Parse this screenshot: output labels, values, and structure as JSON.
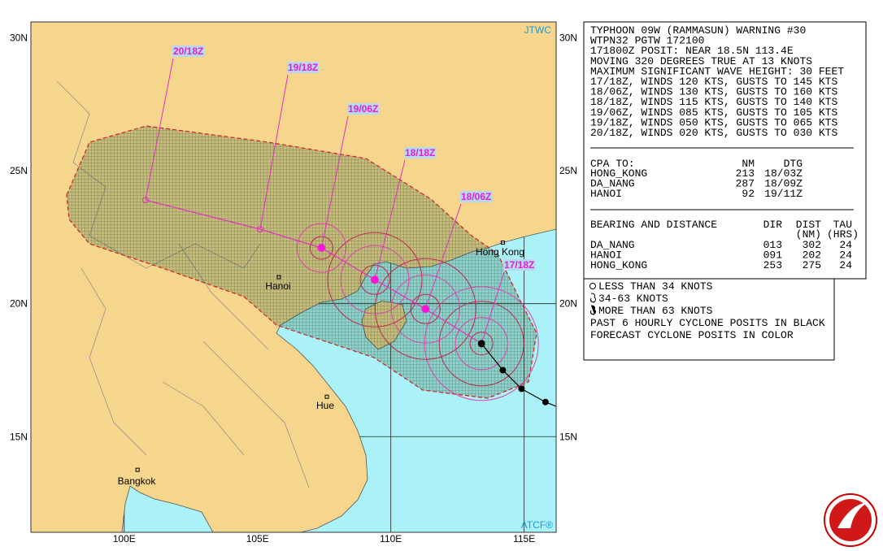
{
  "map": {
    "credit_left": "JTWC",
    "credit_right": "ATCF®",
    "xlim": [
      96.5,
      116.2
    ],
    "ylim": [
      11.4,
      30.6
    ],
    "xticks": [
      {
        "value": 100,
        "label": "100E"
      },
      {
        "value": 105,
        "label": "105E"
      },
      {
        "value": 110,
        "label": "110E"
      },
      {
        "value": 115,
        "label": "115E"
      }
    ],
    "yticks": [
      {
        "value": 30,
        "label": "30N"
      },
      {
        "value": 25,
        "label": "25N"
      },
      {
        "value": 20,
        "label": "20N"
      },
      {
        "value": 15,
        "label": "15N"
      }
    ],
    "cities": [
      {
        "name": "Hanoi",
        "lat": 21.0,
        "lon": 105.8
      },
      {
        "name": "Hong Kong",
        "lat": 22.3,
        "lon": 114.2
      },
      {
        "name": "Hue",
        "lat": 16.5,
        "lon": 107.6
      },
      {
        "name": "Bangkok",
        "lat": 13.75,
        "lon": 100.5
      }
    ],
    "forecast": [
      {
        "label": "17/18Z",
        "lat": 18.5,
        "lon": 113.4
      },
      {
        "label": "18/06Z",
        "lat": 19.8,
        "lon": 111.3
      },
      {
        "label": "18/18Z",
        "lat": 20.9,
        "lon": 109.4
      },
      {
        "label": "19/06Z",
        "lat": 22.1,
        "lon": 107.4
      },
      {
        "label": "19/18Z",
        "lat": 22.8,
        "lon": 105.1
      },
      {
        "label": "20/18Z",
        "lat": 23.9,
        "lon": 100.8
      }
    ],
    "past": [
      {
        "lat": 17.5,
        "lon": 114.2
      },
      {
        "lat": 16.8,
        "lon": 114.9
      },
      {
        "lat": 16.3,
        "lon": 115.8
      }
    ]
  },
  "warning": {
    "lines": [
      "TYPHOON 09W (RAMMASUN) WARNING #30",
      "WTPN32 PGTW 172100",
      "171800Z POSIT: NEAR 18.5N 113.4E",
      "MOVING 320 DEGREES TRUE AT 13 KNOTS",
      "MAXIMUM SIGNIFICANT WAVE HEIGHT: 30 FEET",
      "17/18Z, WINDS 120 KTS, GUSTS TO 145 KTS",
      "18/06Z, WINDS 130 KTS, GUSTS TO 160 KTS",
      "18/18Z, WINDS 115 KTS, GUSTS TO 140 KTS",
      "19/06Z, WINDS 085 KTS, GUSTS TO 105 KTS",
      "19/18Z, WINDS 050 KTS, GUSTS TO 065 KTS",
      "20/18Z, WINDS 020 KTS, GUSTS TO 030 KTS"
    ]
  },
  "cpa": {
    "header": [
      "CPA TO:",
      "NM",
      "DTG"
    ],
    "rows": [
      [
        "HONG_KONG",
        "213",
        "18/03Z"
      ],
      [
        "DA_NANG",
        "287",
        "18/09Z"
      ],
      [
        "HANOI",
        "92",
        "19/11Z"
      ]
    ]
  },
  "bearing": {
    "header": [
      "BEARING AND DISTANCE",
      "DIR",
      "DIST",
      "TAU"
    ],
    "subheader": [
      "(NM)",
      "(HRS)"
    ],
    "rows": [
      [
        "DA_NANG",
        "013",
        "302",
        "24"
      ],
      [
        "HANOI",
        "091",
        "202",
        "24"
      ],
      [
        "HONG_KONG",
        "253",
        "275",
        "24"
      ]
    ]
  },
  "legend": {
    "lines": [
      "LESS THAN 34 KNOTS",
      "34-63 KNOTS",
      "MORE THAN 63 KNOTS",
      "PAST 6 HOURLY CYCLONE POSITS IN BLACK",
      "FORECAST CYCLONE POSITS IN COLOR"
    ]
  }
}
